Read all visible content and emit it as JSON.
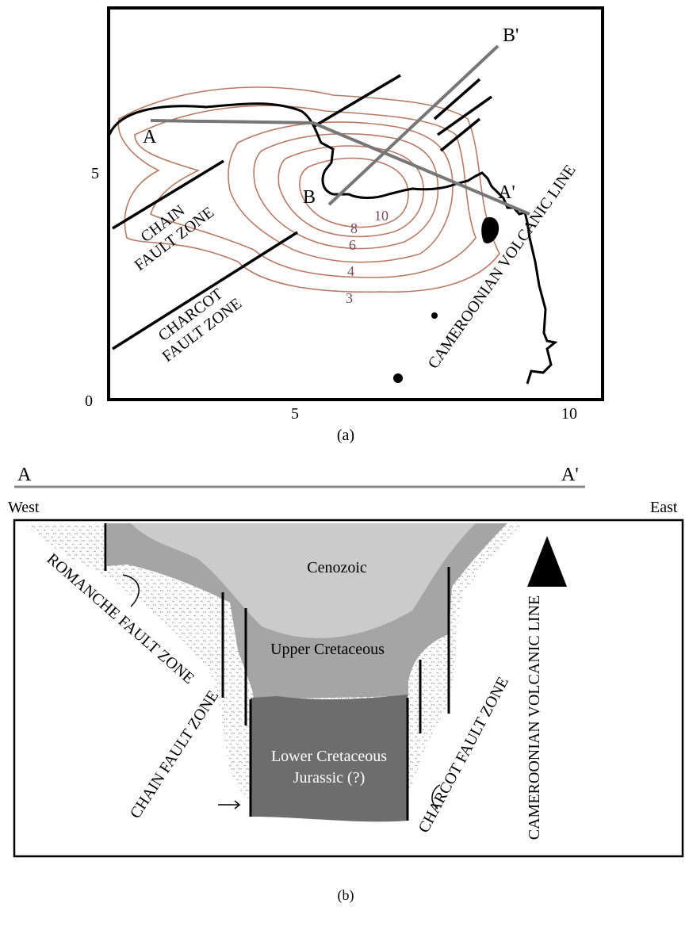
{
  "panel_a": {
    "y_ticks": [
      "0",
      "5"
    ],
    "x_ticks": [
      "5",
      "10"
    ],
    "points": {
      "a": "A",
      "a_prime": "A'",
      "b": "B",
      "b_prime": "B'"
    },
    "chain_zone": [
      "CHAIN",
      "FAULT ZONE"
    ],
    "charcot_zone": [
      "CHARCOT",
      "FAULT ZONE"
    ],
    "volcanic_line": "CAMEROONIAN VOLCANIC LINE",
    "contours": [
      "10",
      "8",
      "6",
      "4",
      "3"
    ],
    "caption": "(a)"
  },
  "panel_b": {
    "start": "A",
    "end": "A'",
    "west": "West",
    "east": "East",
    "cenozoic": "Cenozoic",
    "upper": "Upper Cretaceous",
    "lower": [
      "Lower Cretaceous",
      "Jurassic (?)"
    ],
    "romanche_zone": "ROMANCHE FAULT ZONE",
    "chain_zone": "CHAIN FAULT ZONE",
    "charcot_zone": "CHARCOT FAULT ZONE",
    "volcanic_line": "CAMEROONIAN VOLCANIC LINE",
    "caption": "(b)"
  }
}
